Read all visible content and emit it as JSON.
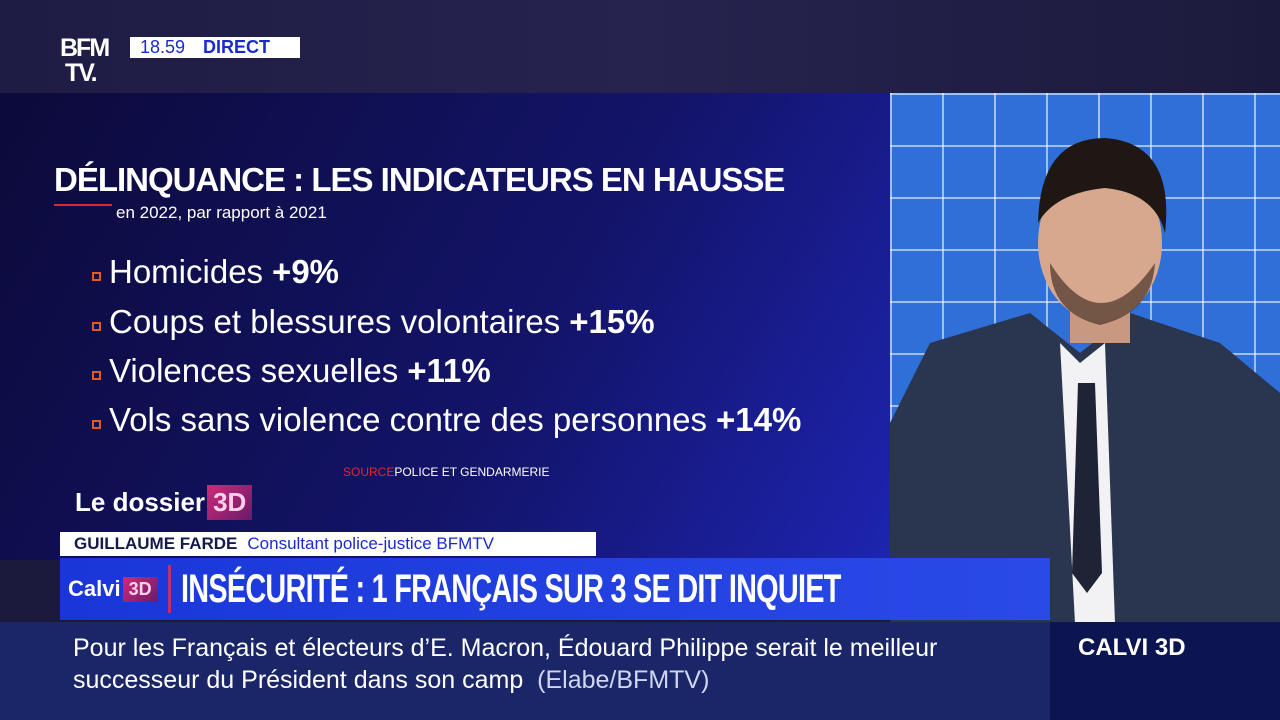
{
  "header": {
    "logo": "BFM TV.",
    "time": "18.59",
    "live": "DIRECT"
  },
  "graphic": {
    "title": "DÉLINQUANCE : LES INDICATEURS EN HAUSSE",
    "subtitle": "en 2022, par rapport à 2021",
    "items": [
      {
        "label": "Homicides",
        "value": "+9%"
      },
      {
        "label": "Coups et blessures volontaires",
        "value": "+15%"
      },
      {
        "label": "Violences sexuelles",
        "value": "+11%"
      },
      {
        "label": "Vols sans violence contre des personnes",
        "value": "+14%"
      }
    ],
    "source_label": "SOURCE",
    "source": "POLICE ET GENDARMERIE",
    "segment": "Le dossier",
    "segment_badge": "3D"
  },
  "lower_third": {
    "name": "GUILLAUME FARDE",
    "role": "Consultant police-justice BFMTV",
    "show": "Calvi",
    "show_badge": "3D",
    "headline": "INSÉCURITÉ : 1 FRANÇAIS SUR 3 SE DIT INQUIET"
  },
  "ticker": {
    "text": "Pour les Français et électeurs d’E. Macron, Édouard Philippe serait le meilleur successeur du Président dans son camp",
    "source": "(Elabe/BFMTV)",
    "program": "CALVI 3D"
  }
}
